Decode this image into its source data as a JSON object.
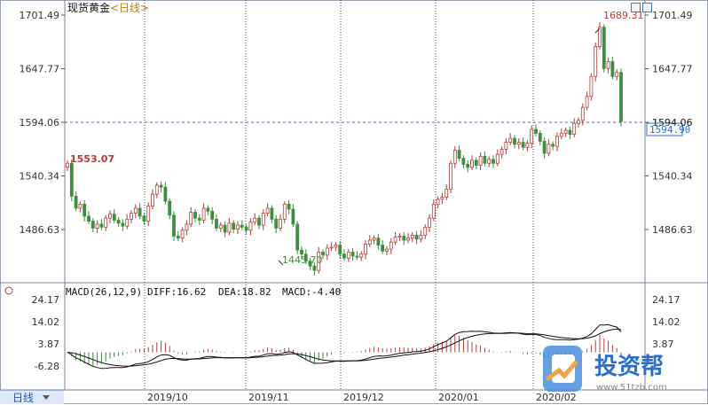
{
  "header": {
    "instrument": "现货黄金",
    "period": "<日线>"
  },
  "tab": {
    "label": "日线"
  },
  "watermark": {
    "brand": "投资帮",
    "url": "www.51tzb.com"
  },
  "colors": {
    "up": "#b83a3a",
    "down": "#3c8f3c",
    "crosshair": "#2e6fd8",
    "macd_label": "#c000c0",
    "last_price_box": "#2e6fd8"
  },
  "chart_data": [
    {
      "type": "candlestick",
      "title": "现货黄金<日线>",
      "y_ticks": [
        "1701.49",
        "1647.77",
        "1594.06",
        "1540.34",
        "1486.63"
      ],
      "y_tick_values": [
        1701.49,
        1647.77,
        1594.06,
        1540.34,
        1486.63
      ],
      "x_ticks": [
        "2019/10",
        "2019/11",
        "2019/12",
        "2020/01",
        "2020/02"
      ],
      "annotations": {
        "high": "1689.31",
        "low": "1445.70",
        "start": "1553.07"
      },
      "crosshair_price": "1594.90",
      "crosshair_label": "1594.06",
      "values": [
        1553.07,
        1520,
        1508,
        1512,
        1500,
        1495,
        1488,
        1492,
        1489,
        1498,
        1502,
        1496,
        1493,
        1490,
        1497,
        1503,
        1508,
        1500,
        1495,
        1510,
        1522,
        1531,
        1529,
        1515,
        1501,
        1480,
        1478,
        1486,
        1492,
        1504,
        1498,
        1496,
        1508,
        1505,
        1497,
        1488,
        1491,
        1484,
        1493,
        1487,
        1491,
        1489,
        1486,
        1494,
        1498,
        1491,
        1503,
        1508,
        1497,
        1488,
        1497,
        1512,
        1507,
        1492,
        1466,
        1462,
        1455,
        1450,
        1445.7,
        1464,
        1461,
        1468,
        1469,
        1471,
        1462,
        1458,
        1464,
        1460,
        1459,
        1462,
        1472,
        1476,
        1478,
        1471,
        1465,
        1467,
        1474,
        1479,
        1480,
        1476,
        1478,
        1481,
        1477,
        1481,
        1489,
        1498,
        1512,
        1517,
        1519,
        1527,
        1553,
        1566,
        1558,
        1552,
        1549,
        1556,
        1551,
        1560,
        1553,
        1557,
        1553,
        1562,
        1567,
        1574,
        1578,
        1572,
        1574,
        1569,
        1573,
        1587,
        1583,
        1575,
        1563,
        1572,
        1570,
        1580,
        1583,
        1586,
        1582,
        1593,
        1596,
        1609,
        1620,
        1640,
        1670,
        1689.31,
        1648,
        1655,
        1640,
        1644,
        1594.9
      ]
    },
    {
      "type": "bar",
      "title": "MACD",
      "series": [
        {
          "name": "MACD(26,12,9)",
          "values": []
        },
        {
          "name": "DIFF",
          "values": [
            16.62
          ]
        },
        {
          "name": "DEA",
          "values": [
            18.82
          ]
        },
        {
          "name": "MACD",
          "values": [
            -4.4
          ]
        }
      ],
      "labels": {
        "params": "MACD(26,12,9)",
        "diff": "DIFF:16.62",
        "dea": "DEA:18.82",
        "macd": "MACD:-4.40"
      },
      "y_ticks": [
        "24.17",
        "14.02",
        "3.87",
        "-6.28"
      ],
      "y_tick_values": [
        24.17,
        14.02,
        3.87,
        -6.28
      ]
    }
  ]
}
